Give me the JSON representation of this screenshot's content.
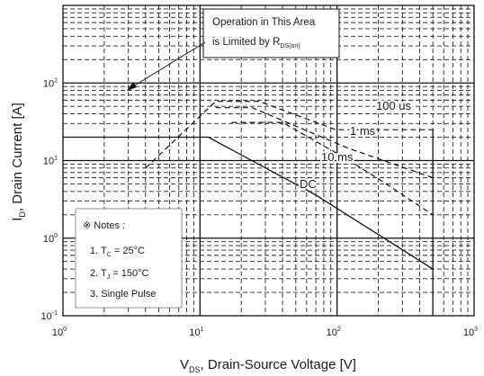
{
  "chart_data": {
    "type": "line",
    "title": "",
    "x_scale": "log",
    "y_scale": "log",
    "xlim": [
      1,
      1000
    ],
    "ylim": [
      0.1,
      1000
    ],
    "x_ticks": [
      {
        "value": 1,
        "base": "10",
        "exp": "0"
      },
      {
        "value": 10,
        "base": "10",
        "exp": "1"
      },
      {
        "value": 100,
        "base": "10",
        "exp": "2"
      },
      {
        "value": 1000,
        "base": "10",
        "exp": "3"
      }
    ],
    "y_ticks": [
      {
        "value": 0.1,
        "base": "10",
        "exp": "-1"
      },
      {
        "value": 1,
        "base": "10",
        "exp": "0"
      },
      {
        "value": 10,
        "base": "10",
        "exp": "1"
      },
      {
        "value": 100,
        "base": "10",
        "exp": "2"
      }
    ],
    "xlabel": {
      "main": "V",
      "sub": "DS",
      "rest": ", Drain-Source Voltage [V]"
    },
    "ylabel": {
      "main": "I",
      "sub": "D",
      "rest": ", Drain Current [A]"
    },
    "grid": true,
    "series": [
      {
        "name": "100 us",
        "style": "dashed",
        "points": [
          [
            4.0,
            8
          ],
          [
            13.0,
            58
          ],
          [
            27.0,
            58
          ],
          [
            98.0,
            25
          ],
          [
            500.0,
            25
          ]
        ]
      },
      {
        "name": "1 ms",
        "style": "dashed",
        "points": [
          [
            13.0,
            48
          ],
          [
            24.0,
            48
          ],
          [
            120.0,
            14.5
          ],
          [
            500.0,
            6
          ]
        ]
      },
      {
        "name": "10 ms",
        "style": "dashed",
        "points": [
          [
            17.0,
            31
          ],
          [
            40.0,
            31
          ],
          [
            112.0,
            11
          ],
          [
            195.0,
            6
          ],
          [
            500.0,
            2
          ]
        ]
      },
      {
        "name": "DC",
        "style": "solid",
        "points": [
          [
            1.0,
            20
          ],
          [
            11.5,
            20
          ],
          [
            70.0,
            3.6
          ],
          [
            500.0,
            0.4
          ]
        ]
      }
    ],
    "annotations": {
      "rds_note": {
        "line1": "Operation in This Area",
        "line2": "is Limited by R",
        "sub": "DS(on)"
      },
      "notes": {
        "heading": "※ Notes :",
        "item1": {
          "prefix": "1. T",
          "sub": "C",
          "suffix": " = 25°C"
        },
        "item2": {
          "prefix": "2. T",
          "sub": "J",
          "suffix": " = 150°C"
        },
        "item3": "3. Single Pulse"
      }
    }
  }
}
